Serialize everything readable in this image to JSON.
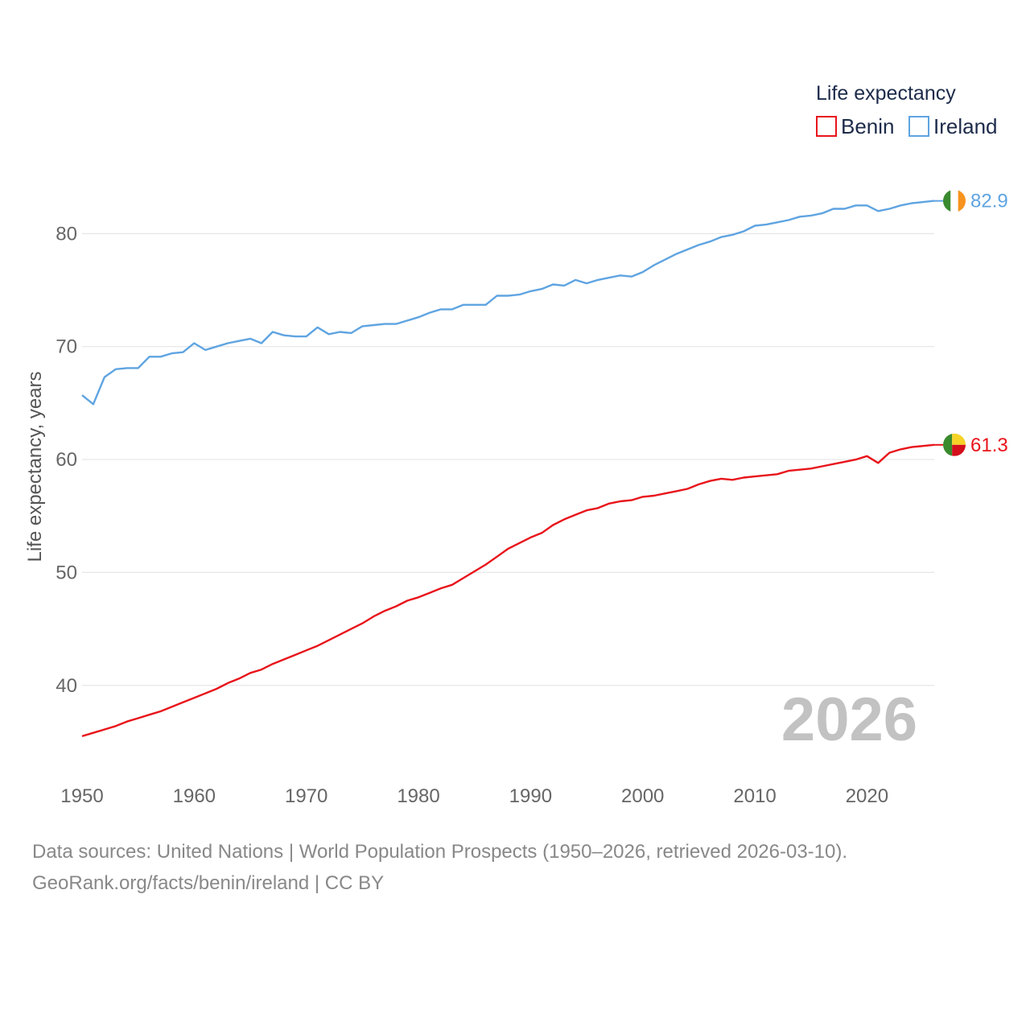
{
  "chart_data": {
    "type": "line",
    "legend_title": "Life expectancy",
    "ylabel": "Life expectancy, years",
    "xlim": [
      1950,
      2026
    ],
    "ylim": [
      33,
      90
    ],
    "x_ticks": [
      1950,
      1960,
      1970,
      1980,
      1990,
      2000,
      2010,
      2020
    ],
    "y_ticks": [
      40,
      50,
      60,
      70,
      80
    ],
    "year_label": "2026",
    "x": [
      1950,
      1951,
      1952,
      1953,
      1954,
      1955,
      1956,
      1957,
      1958,
      1959,
      1960,
      1961,
      1962,
      1963,
      1964,
      1965,
      1966,
      1967,
      1968,
      1969,
      1970,
      1971,
      1972,
      1973,
      1974,
      1975,
      1976,
      1977,
      1978,
      1979,
      1980,
      1981,
      1982,
      1983,
      1984,
      1985,
      1986,
      1987,
      1988,
      1989,
      1990,
      1991,
      1992,
      1993,
      1994,
      1995,
      1996,
      1997,
      1998,
      1999,
      2000,
      2001,
      2002,
      2003,
      2004,
      2005,
      2006,
      2007,
      2008,
      2009,
      2010,
      2011,
      2012,
      2013,
      2014,
      2015,
      2016,
      2017,
      2018,
      2019,
      2020,
      2021,
      2022,
      2023,
      2024,
      2025,
      2026
    ],
    "series": [
      {
        "name": "Benin",
        "color": "#e8141b",
        "end_label": "61.3",
        "flag_colors": [
          "#3a8a2e",
          "#f5d327",
          "#d3101b"
        ],
        "values": [
          35.5,
          35.8,
          36.1,
          36.4,
          36.8,
          37.1,
          37.4,
          37.7,
          38.1,
          38.5,
          38.9,
          39.3,
          39.7,
          40.2,
          40.6,
          41.1,
          41.4,
          41.9,
          42.3,
          42.7,
          43.1,
          43.5,
          44.0,
          44.5,
          45.0,
          45.5,
          46.1,
          46.6,
          47.0,
          47.5,
          47.8,
          48.2,
          48.6,
          48.9,
          49.5,
          50.1,
          50.7,
          51.4,
          52.1,
          52.6,
          53.1,
          53.5,
          54.2,
          54.7,
          55.1,
          55.5,
          55.7,
          56.1,
          56.3,
          56.4,
          56.7,
          56.8,
          57.0,
          57.2,
          57.4,
          57.8,
          58.1,
          58.3,
          58.2,
          58.4,
          58.5,
          58.6,
          58.7,
          59.0,
          59.1,
          59.2,
          59.4,
          59.6,
          59.8,
          60.0,
          60.3,
          59.7,
          60.6,
          60.9,
          61.1,
          61.2,
          61.3
        ]
      },
      {
        "name": "Ireland",
        "color": "#5fa4e1",
        "end_label": "82.9",
        "flag_colors": [
          "#3a8a2e",
          "#ffffff",
          "#f7931e"
        ],
        "values": [
          65.7,
          64.9,
          67.3,
          68.0,
          68.1,
          68.1,
          69.1,
          69.1,
          69.4,
          69.5,
          70.3,
          69.7,
          70.0,
          70.3,
          70.5,
          70.7,
          70.3,
          71.3,
          71.0,
          70.9,
          70.9,
          71.7,
          71.1,
          71.3,
          71.2,
          71.8,
          71.9,
          72.0,
          72.0,
          72.3,
          72.6,
          73.0,
          73.3,
          73.3,
          73.7,
          73.7,
          73.7,
          74.5,
          74.5,
          74.6,
          74.9,
          75.1,
          75.5,
          75.4,
          75.9,
          75.6,
          75.9,
          76.1,
          76.3,
          76.2,
          76.6,
          77.2,
          77.7,
          78.2,
          78.6,
          79.0,
          79.3,
          79.7,
          79.9,
          80.2,
          80.7,
          80.8,
          81.0,
          81.2,
          81.5,
          81.6,
          81.8,
          82.2,
          82.2,
          82.5,
          82.5,
          82.0,
          82.2,
          82.5,
          82.7,
          82.8,
          82.9
        ]
      }
    ]
  },
  "footer": {
    "line1": "Data sources: United Nations | World Population Prospects (1950–2026, retrieved 2026-03-10).",
    "line2": "GeoRank.org/facts/benin/ireland | CC BY"
  }
}
